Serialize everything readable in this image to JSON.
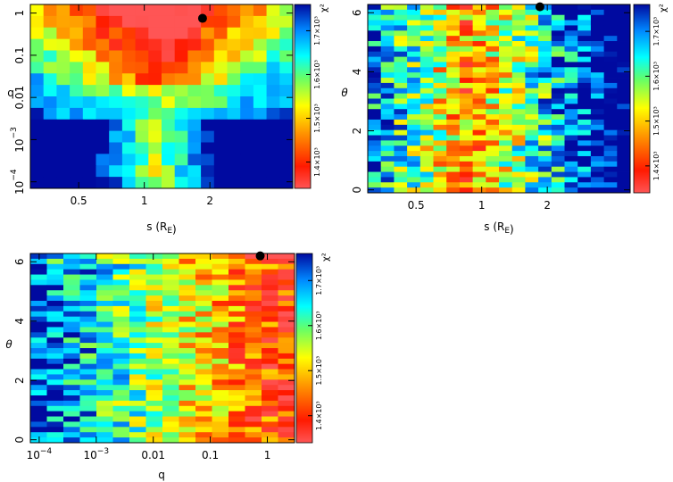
{
  "chart_data": [
    {
      "type": "heatmap",
      "panel": "top-left",
      "xlabel": "s (R_E)",
      "ylabel": "q",
      "xscale": "log",
      "yscale": "log",
      "xlim": [
        0.3,
        4.8
      ],
      "ylim": [
        7e-05,
        1.6
      ],
      "xticks": [
        {
          "value": 0.5,
          "label": "0.5"
        },
        {
          "value": 1,
          "label": "1"
        },
        {
          "value": 2,
          "label": "2"
        }
      ],
      "yticks": [
        {
          "value": 0.0001,
          "label": "10^-4"
        },
        {
          "value": 0.001,
          "label": "10^-3"
        },
        {
          "value": 0.01,
          "label": "0.01"
        },
        {
          "value": 0.1,
          "label": "0.1"
        },
        {
          "value": 1,
          "label": "1"
        }
      ],
      "grid_cols": 20,
      "grid_rows": 16,
      "best_fit": {
        "x": 1.85,
        "y": 0.75
      },
      "colorbar": {
        "label": "χ²",
        "ticks": [
          {
            "value": 1.4,
            "label": "1.4×10³"
          },
          {
            "value": 1.5,
            "label": "1.5×10³"
          },
          {
            "value": 1.6,
            "label": "1.6×10³"
          },
          {
            "value": 1.7,
            "label": "1.7×10³"
          }
        ],
        "range": [
          1.34,
          1.76
        ]
      }
    },
    {
      "type": "heatmap",
      "panel": "top-right",
      "xlabel": "s (R_E)",
      "ylabel": "θ",
      "xscale": "log",
      "yscale": "linear",
      "xlim": [
        0.3,
        4.8
      ],
      "ylim": [
        -0.1,
        6.28
      ],
      "xticks": [
        {
          "value": 0.5,
          "label": "0.5"
        },
        {
          "value": 1,
          "label": "1"
        },
        {
          "value": 2,
          "label": "2"
        }
      ],
      "yticks": [
        {
          "value": 0,
          "label": "0"
        },
        {
          "value": 2,
          "label": "2"
        },
        {
          "value": 4,
          "label": "4"
        },
        {
          "value": 6,
          "label": "6"
        }
      ],
      "grid_cols": 20,
      "grid_rows": 36,
      "best_fit": {
        "x": 1.85,
        "y": 6.2
      },
      "colorbar": {
        "label": "χ²",
        "ticks": [
          {
            "value": 1.4,
            "label": "1.4×10³"
          },
          {
            "value": 1.5,
            "label": "1.5×10³"
          },
          {
            "value": 1.6,
            "label": "1.6×10³"
          },
          {
            "value": 1.7,
            "label": "1.7×10³"
          }
        ],
        "range": [
          1.34,
          1.76
        ]
      }
    },
    {
      "type": "heatmap",
      "panel": "bottom-left",
      "xlabel": "q",
      "ylabel": "θ",
      "xscale": "log",
      "yscale": "linear",
      "xlim": [
        7e-05,
        3.0
      ],
      "ylim": [
        -0.1,
        6.28
      ],
      "xticks": [
        {
          "value": 0.0001,
          "label": "10^-4"
        },
        {
          "value": 0.001,
          "label": "10^-3"
        },
        {
          "value": 0.01,
          "label": "0.01"
        },
        {
          "value": 0.1,
          "label": "0.1"
        },
        {
          "value": 1,
          "label": "1"
        }
      ],
      "yticks": [
        {
          "value": 0,
          "label": "0"
        },
        {
          "value": 2,
          "label": "2"
        },
        {
          "value": 4,
          "label": "4"
        },
        {
          "value": 6,
          "label": "6"
        }
      ],
      "grid_cols": 16,
      "grid_rows": 36,
      "best_fit": {
        "x": 0.75,
        "y": 6.2
      },
      "colorbar": {
        "label": "χ²",
        "ticks": [
          {
            "value": 1.4,
            "label": "1.4×10³"
          },
          {
            "value": 1.5,
            "label": "1.5×10³"
          },
          {
            "value": 1.6,
            "label": "1.6×10³"
          },
          {
            "value": 1.7,
            "label": "1.7×10³"
          }
        ],
        "range": [
          1.34,
          1.76
        ]
      }
    }
  ]
}
